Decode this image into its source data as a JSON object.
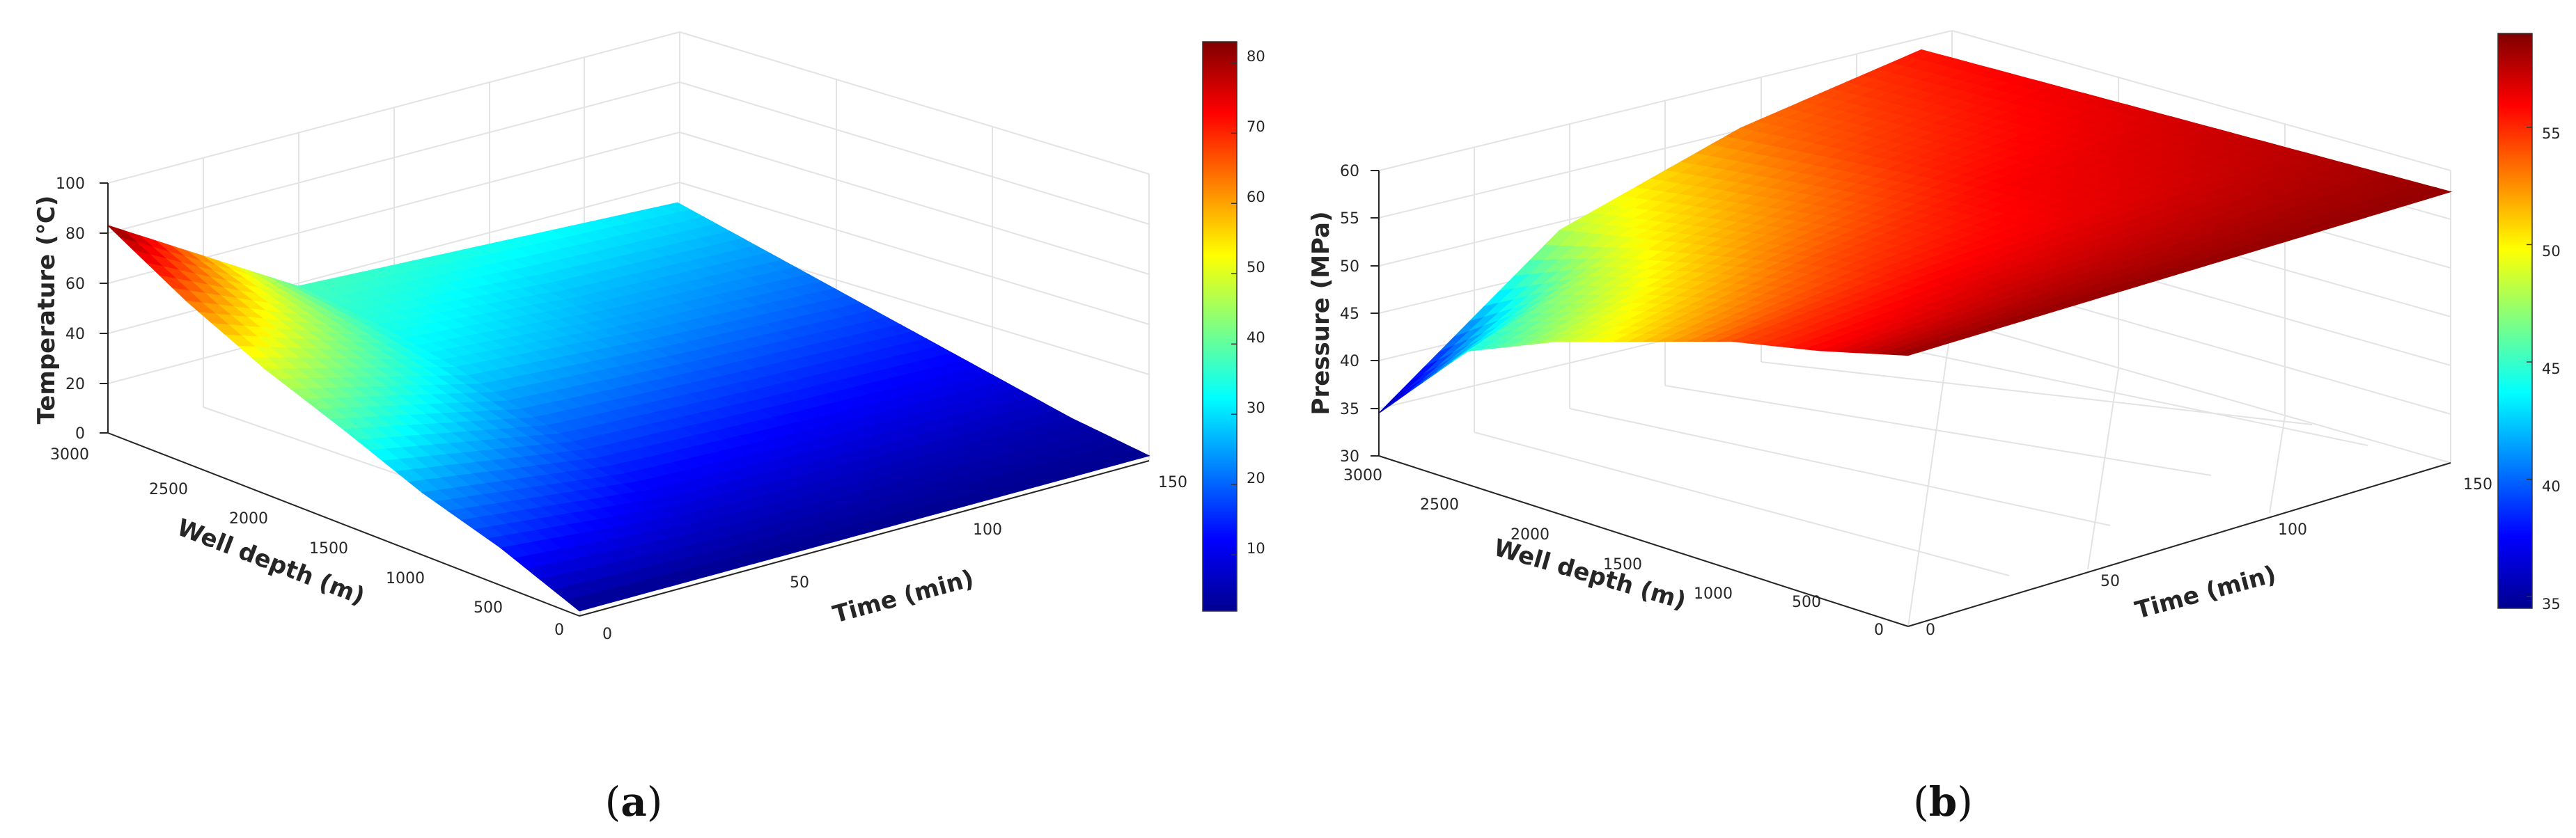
{
  "chart_data": [
    {
      "type": "surface3d",
      "panel_label": "a",
      "zlabel": "Temperature  (℃)",
      "xlabel": "Well depth  (m)",
      "ylabel": "Time  (min)",
      "xlim": [
        0,
        3000
      ],
      "ylim": [
        0,
        150
      ],
      "zlim": [
        0,
        100
      ],
      "xticks": [
        "0",
        "500",
        "1000",
        "1500",
        "2000",
        "2500",
        "3000"
      ],
      "yticks": [
        "0",
        "50",
        "100",
        "150"
      ],
      "zticks": [
        "0",
        "20",
        "40",
        "60",
        "80",
        "100"
      ],
      "colorbar": {
        "min": 2,
        "max": 83,
        "ticks": [
          "10",
          "20",
          "30",
          "40",
          "50",
          "60",
          "70",
          "80"
        ]
      },
      "depth_samples": [
        0,
        500,
        1000,
        1500,
        2000,
        2500,
        3000
      ],
      "time_samples": [
        0,
        50,
        100,
        150
      ],
      "values": [
        [
          2,
          2,
          2,
          2
        ],
        [
          15,
          8,
          6,
          5
        ],
        [
          25,
          15,
          12,
          10
        ],
        [
          38,
          22,
          18,
          15
        ],
        [
          50,
          30,
          24,
          20
        ],
        [
          65,
          35,
          28,
          25
        ],
        [
          83,
          38,
          34,
          30
        ]
      ]
    },
    {
      "type": "surface3d",
      "panel_label": "b",
      "zlabel": "Pressure  (MPa)",
      "xlabel": "Well depth  (m)",
      "ylabel": "Time  (min)",
      "xlim": [
        0,
        3000
      ],
      "ylim": [
        0,
        150
      ],
      "zlim": [
        30,
        60
      ],
      "xticks": [
        "0",
        "500",
        "1000",
        "1500",
        "2000",
        "2500",
        "3000"
      ],
      "yticks": [
        "0",
        "50",
        "100",
        "150"
      ],
      "zticks": [
        "30",
        "35",
        "40",
        "45",
        "50",
        "55",
        "60"
      ],
      "colorbar": {
        "min": 34.5,
        "max": 59,
        "ticks": [
          "35",
          "40",
          "45",
          "50",
          "55"
        ]
      },
      "depth_samples": [
        0,
        500,
        1000,
        1500,
        2000,
        2500,
        3000
      ],
      "time_samples": [
        0,
        50,
        100,
        150
      ],
      "values": [
        [
          58.5,
          58.5,
          58.5,
          58.5
        ],
        [
          56,
          57,
          57.5,
          58
        ],
        [
          54,
          55.5,
          56.5,
          57.5
        ],
        [
          51,
          54,
          56,
          57
        ],
        [
          48,
          52,
          55,
          56.5
        ],
        [
          44,
          50,
          54,
          56
        ],
        [
          34.5,
          48,
          53,
          55.5
        ]
      ]
    }
  ],
  "colormap": [
    "#00008f",
    "#0000ff",
    "#0080ff",
    "#00ffff",
    "#80ff80",
    "#ffff00",
    "#ff8000",
    "#ff0000",
    "#800000"
  ]
}
